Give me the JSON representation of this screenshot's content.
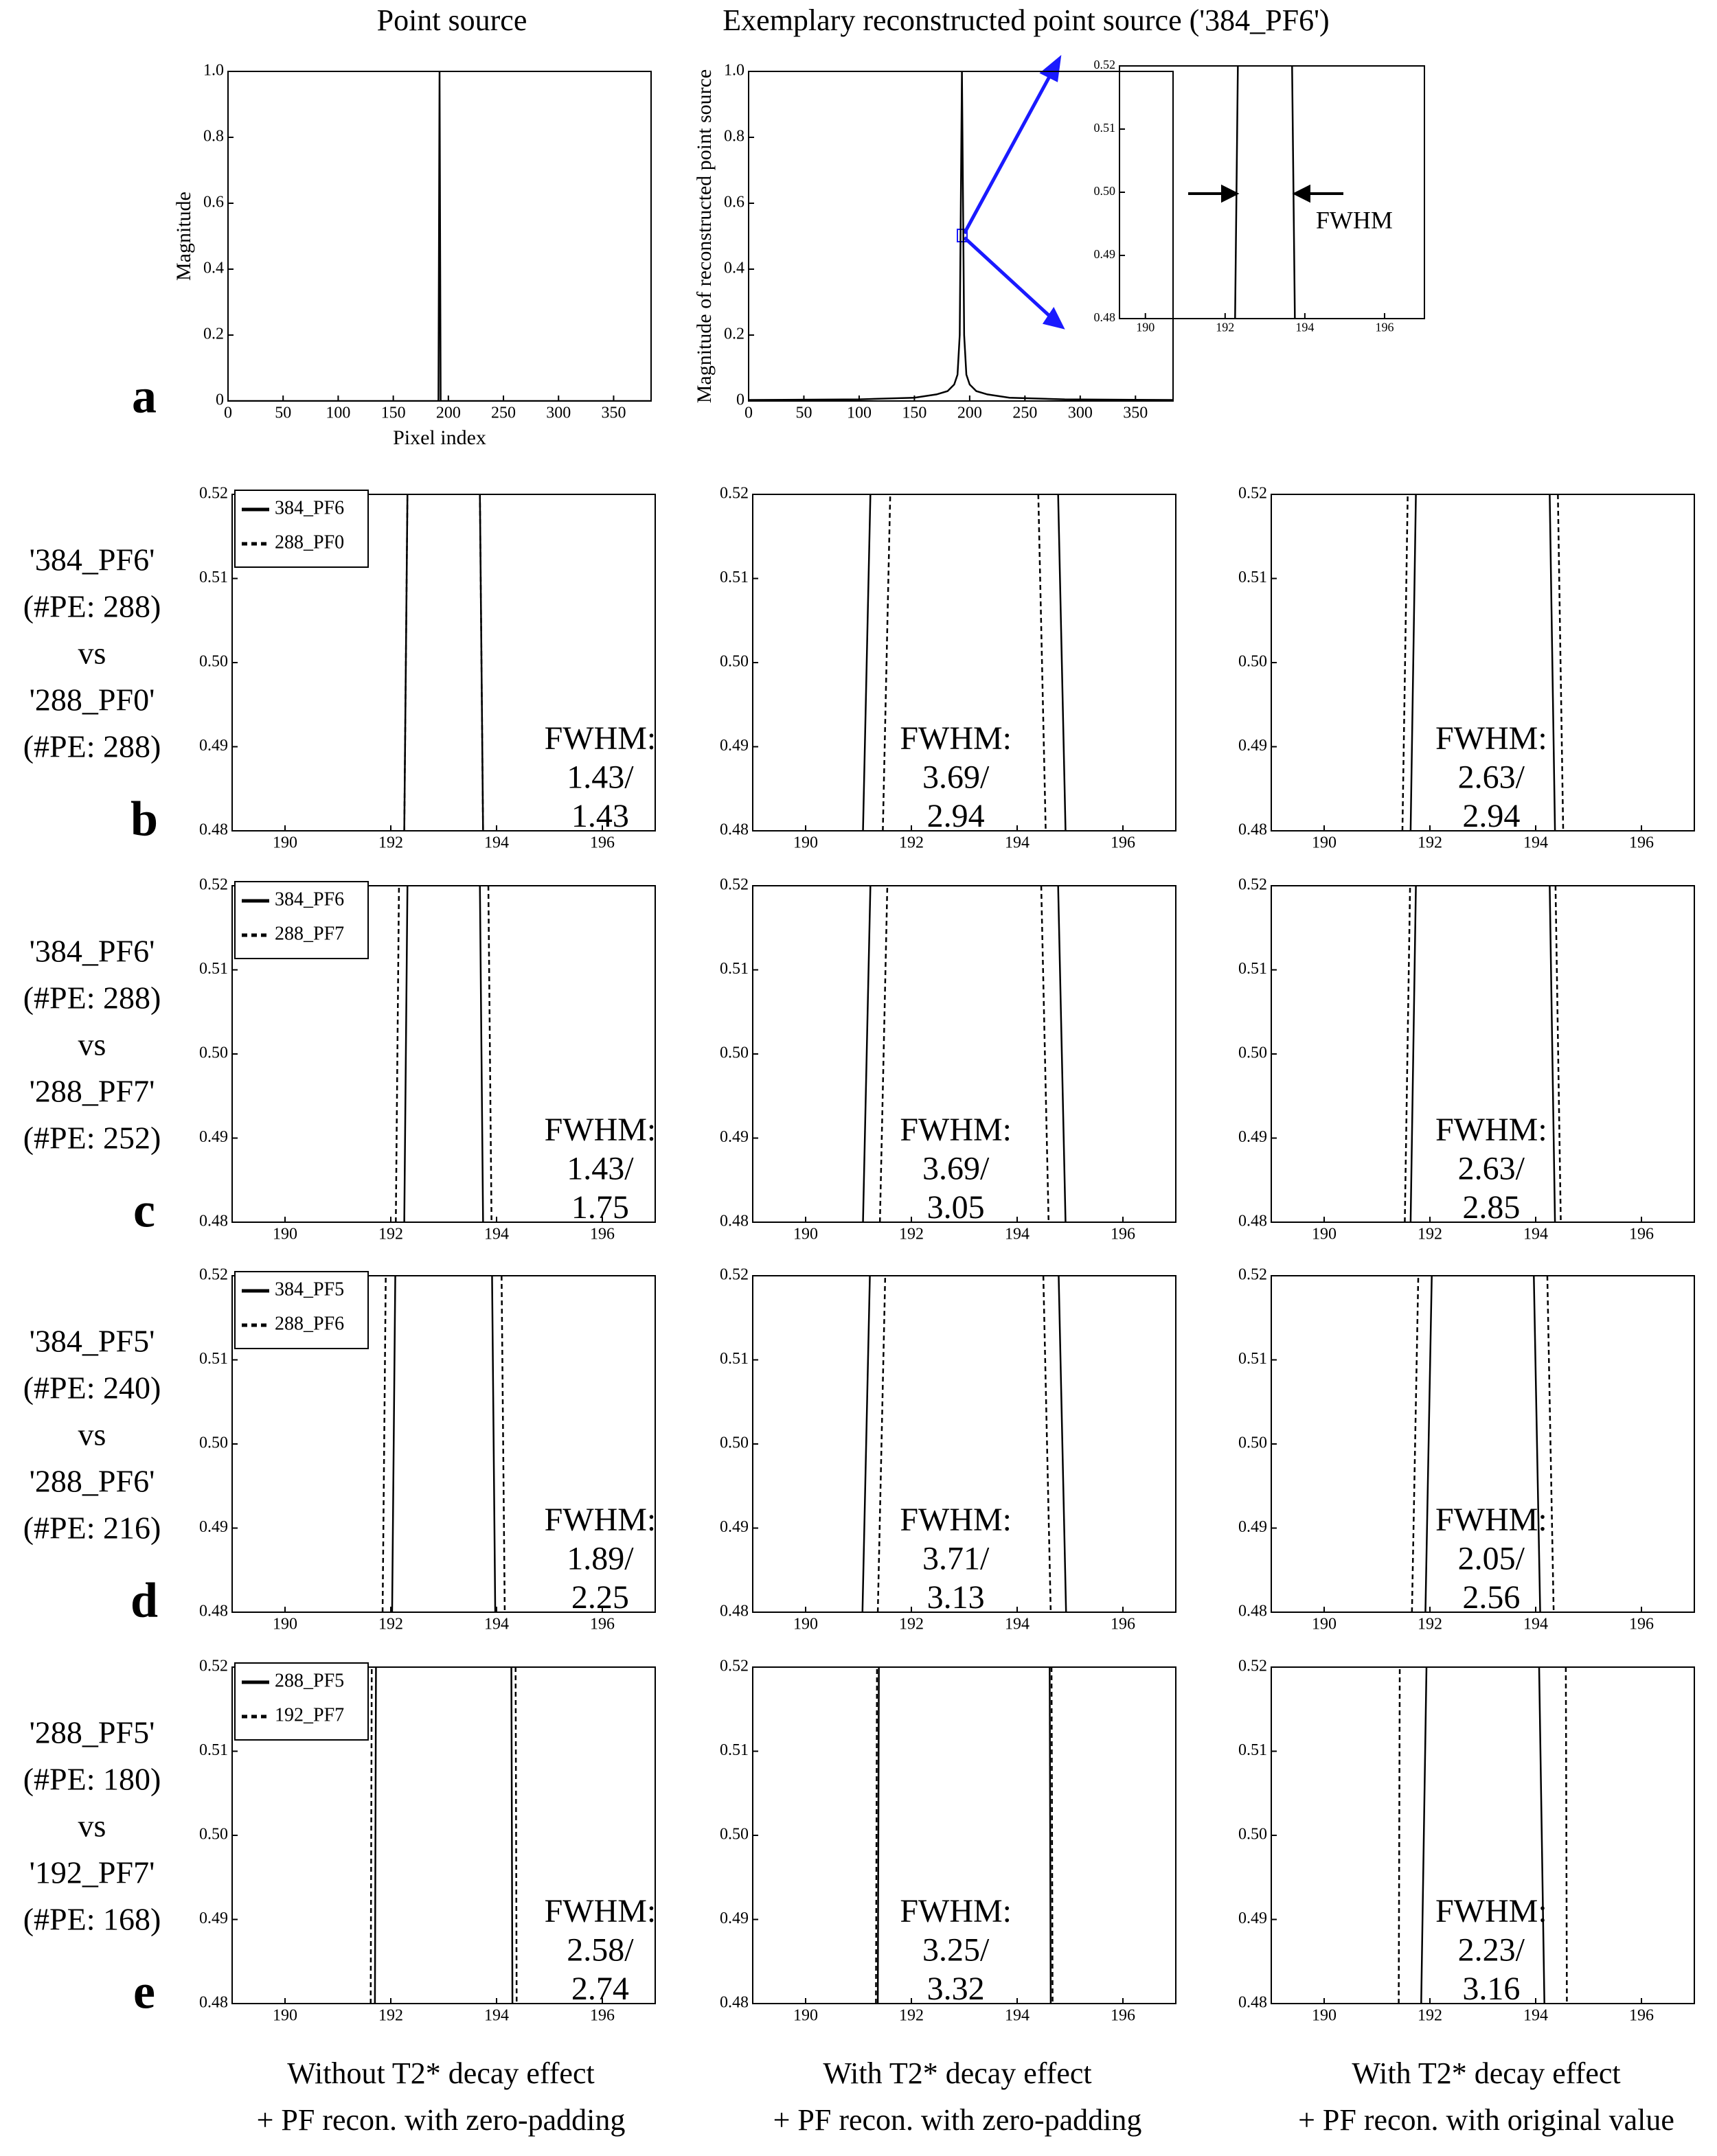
{
  "column_headers": [
    "Point source",
    "Exemplary reconstructed point source ('384_PF6')"
  ],
  "panel_a_letter": "a",
  "row_labels": [
    {
      "letter": "b",
      "lines": [
        "'384_PF6'",
        "(#PE: 288)",
        "vs",
        "'288_PF0'",
        "(#PE: 288)"
      ]
    },
    {
      "letter": "c",
      "lines": [
        "'384_PF6'",
        "(#PE: 288)",
        "vs",
        "'288_PF7'",
        "(#PE: 252)"
      ]
    },
    {
      "letter": "d",
      "lines": [
        "'384_PF5'",
        "(#PE: 240)",
        "vs",
        "'288_PF6'",
        "(#PE: 216)"
      ]
    },
    {
      "letter": "e",
      "lines": [
        "'288_PF5'",
        "(#PE: 180)",
        "vs",
        "'192_PF7'",
        "(#PE: 168)"
      ]
    }
  ],
  "column_footers": [
    [
      "Without T2* decay effect",
      "+ PF recon. with zero-padding"
    ],
    [
      "With T2* decay effect",
      "+ PF recon. with zero-padding"
    ],
    [
      "With T2* decay effect",
      "+ PF recon. with original value"
    ]
  ],
  "chart_data": [
    {
      "type": "line",
      "x_label": "Pixel index",
      "y_label": "Magnitude",
      "xlim": [
        0,
        384
      ],
      "ylim": [
        0,
        1
      ],
      "xticks": [
        0,
        50,
        100,
        150,
        200,
        250,
        300,
        350
      ],
      "yticks": [
        0,
        0.2,
        0.4,
        0.6,
        0.8,
        {
          "value": 1,
          "label": "1.0"
        }
      ],
      "x": [
        0,
        191,
        192,
        193,
        384
      ],
      "series": [
        {
          "color": "#000000",
          "dash": "solid",
          "values": [
            0,
            0,
            1,
            0,
            0
          ]
        }
      ]
    },
    {
      "type": "line",
      "y_label": "Magnitude of reconstructed point source",
      "xlim": [
        0,
        384
      ],
      "ylim": [
        0,
        1
      ],
      "xticks": [
        0,
        50,
        100,
        150,
        200,
        250,
        300,
        350
      ],
      "yticks": [
        0,
        0.2,
        0.4,
        0.6,
        0.8,
        {
          "value": 1,
          "label": "1.0"
        }
      ],
      "x": [
        0,
        100,
        150,
        170,
        180,
        186,
        189,
        191,
        192,
        193,
        194,
        195,
        197,
        200,
        206,
        216,
        236,
        286,
        384
      ],
      "series": [
        {
          "color": "#000000",
          "dash": "solid",
          "values": [
            0.003,
            0.005,
            0.01,
            0.02,
            0.03,
            0.05,
            0.08,
            0.2,
            0.6,
            1.0,
            0.6,
            0.2,
            0.08,
            0.05,
            0.03,
            0.02,
            0.01,
            0.005,
            0.003
          ]
        }
      ]
    },
    {
      "type": "line",
      "annotations": [
        "FWHM"
      ],
      "xlim": [
        189.35,
        197
      ],
      "ylim": [
        0.48,
        0.52
      ],
      "xticks": [
        190,
        192,
        194,
        196
      ],
      "yticks": [
        0.48,
        0.49,
        {
          "value": 0.5,
          "label": "0.50"
        },
        0.51,
        0.52
      ],
      "series": [
        {
          "color": "#000000",
          "dash": "solid",
          "x": [
            192.25,
            192.32,
            193,
            193.68,
            193.75
          ],
          "values": [
            0.48,
            0.52,
            null,
            0.52,
            0.48
          ]
        }
      ]
    },
    {
      "type": "line",
      "legend": "upper left",
      "annotations": [
        "FWHM:",
        "1.43/",
        "1.43"
      ],
      "xlim": [
        189,
        197
      ],
      "ylim": [
        0.48,
        0.52
      ],
      "xticks": [
        190,
        192,
        194,
        196
      ],
      "yticks": [
        0.48,
        0.49,
        {
          "value": 0.5,
          "label": "0.50"
        },
        0.51,
        0.52
      ],
      "series": [
        {
          "name": "384_PF6",
          "color": "#000000",
          "dash": "solid",
          "x": [
            192.255,
            192.315,
            193,
            193.685,
            193.745
          ],
          "values": [
            0.48,
            0.52,
            null,
            0.52,
            0.48
          ]
        },
        {
          "name": "288_PF0",
          "color": "#000000",
          "dash": "dashed",
          "x": [
            192.255,
            192.315,
            193,
            193.685,
            193.745
          ],
          "values": [
            0.48,
            0.52,
            null,
            0.52,
            0.48
          ]
        }
      ]
    },
    {
      "type": "line",
      "annotations": [
        "FWHM:",
        "3.69/",
        "2.94"
      ],
      "xlim": [
        189,
        197
      ],
      "ylim": [
        0.48,
        0.52
      ],
      "xticks": [
        190,
        192,
        194,
        196
      ],
      "yticks": [
        0.48,
        0.49,
        {
          "value": 0.5,
          "label": "0.50"
        },
        0.51,
        0.52
      ],
      "series": [
        {
          "color": "#000000",
          "dash": "solid",
          "x": [
            191.085,
            191.225,
            193,
            194.775,
            194.915
          ],
          "values": [
            0.48,
            0.52,
            null,
            0.52,
            0.48
          ]
        },
        {
          "color": "#000000",
          "dash": "dashed",
          "x": [
            191.46,
            191.6,
            193,
            194.4,
            194.54
          ],
          "values": [
            0.48,
            0.52,
            null,
            0.52,
            0.48
          ]
        }
      ]
    },
    {
      "type": "line",
      "annotations": [
        "FWHM:",
        "2.63/",
        "2.94"
      ],
      "xlim": [
        189,
        197
      ],
      "ylim": [
        0.48,
        0.52
      ],
      "xticks": [
        190,
        192,
        194,
        196
      ],
      "yticks": [
        0.48,
        0.49,
        {
          "value": 0.5,
          "label": "0.50"
        },
        0.51,
        0.52
      ],
      "series": [
        {
          "color": "#000000",
          "dash": "solid",
          "x": [
            191.635,
            191.735,
            193,
            194.265,
            194.365
          ],
          "values": [
            0.48,
            0.52,
            null,
            0.52,
            0.48
          ]
        },
        {
          "color": "#000000",
          "dash": "dashed",
          "x": [
            191.48,
            191.58,
            193,
            194.42,
            194.52
          ],
          "values": [
            0.48,
            0.52,
            null,
            0.52,
            0.48
          ]
        }
      ]
    },
    {
      "type": "line",
      "legend": "upper left",
      "annotations": [
        "FWHM:",
        "1.43/",
        "1.75"
      ],
      "xlim": [
        189,
        197
      ],
      "ylim": [
        0.48,
        0.52
      ],
      "xticks": [
        190,
        192,
        194,
        196
      ],
      "yticks": [
        0.48,
        0.49,
        {
          "value": 0.5,
          "label": "0.50"
        },
        0.51,
        0.52
      ],
      "series": [
        {
          "name": "384_PF6",
          "color": "#000000",
          "dash": "solid",
          "x": [
            192.255,
            192.315,
            193,
            193.685,
            193.745
          ],
          "values": [
            0.48,
            0.52,
            null,
            0.52,
            0.48
          ]
        },
        {
          "name": "288_PF7",
          "color": "#000000",
          "dash": "dashed",
          "x": [
            192.095,
            192.155,
            193,
            193.845,
            193.905
          ],
          "values": [
            0.48,
            0.52,
            null,
            0.52,
            0.48
          ]
        }
      ]
    },
    {
      "type": "line",
      "annotations": [
        "FWHM:",
        "3.69/",
        "3.05"
      ],
      "xlim": [
        189,
        197
      ],
      "ylim": [
        0.48,
        0.52
      ],
      "xticks": [
        190,
        192,
        194,
        196
      ],
      "yticks": [
        0.48,
        0.49,
        {
          "value": 0.5,
          "label": "0.50"
        },
        0.51,
        0.52
      ],
      "series": [
        {
          "color": "#000000",
          "dash": "solid",
          "x": [
            191.085,
            191.225,
            193,
            194.775,
            194.915
          ],
          "values": [
            0.48,
            0.52,
            null,
            0.52,
            0.48
          ]
        },
        {
          "color": "#000000",
          "dash": "dashed",
          "x": [
            191.405,
            191.545,
            193,
            194.455,
            194.595
          ],
          "values": [
            0.48,
            0.52,
            null,
            0.52,
            0.48
          ]
        }
      ]
    },
    {
      "type": "line",
      "annotations": [
        "FWHM:",
        "2.63/",
        "2.85"
      ],
      "xlim": [
        189,
        197
      ],
      "ylim": [
        0.48,
        0.52
      ],
      "xticks": [
        190,
        192,
        194,
        196
      ],
      "yticks": [
        0.48,
        0.49,
        {
          "value": 0.5,
          "label": "0.50"
        },
        0.51,
        0.52
      ],
      "series": [
        {
          "color": "#000000",
          "dash": "solid",
          "x": [
            191.635,
            191.735,
            193,
            194.265,
            194.365
          ],
          "values": [
            0.48,
            0.52,
            null,
            0.52,
            0.48
          ]
        },
        {
          "color": "#000000",
          "dash": "dashed",
          "x": [
            191.525,
            191.625,
            193,
            194.375,
            194.475
          ],
          "values": [
            0.48,
            0.52,
            null,
            0.52,
            0.48
          ]
        }
      ]
    },
    {
      "type": "line",
      "legend": "upper left",
      "annotations": [
        "FWHM:",
        "1.89/",
        "2.25"
      ],
      "xlim": [
        189,
        197
      ],
      "ylim": [
        0.48,
        0.52
      ],
      "xticks": [
        190,
        192,
        194,
        196
      ],
      "yticks": [
        0.48,
        0.49,
        {
          "value": 0.5,
          "label": "0.50"
        },
        0.51,
        0.52
      ],
      "series": [
        {
          "name": "384_PF5",
          "color": "#000000",
          "dash": "solid",
          "x": [
            192.025,
            192.085,
            193,
            193.915,
            193.975
          ],
          "values": [
            0.48,
            0.52,
            null,
            0.52,
            0.48
          ]
        },
        {
          "name": "288_PF6",
          "color": "#000000",
          "dash": "dashed",
          "x": [
            191.845,
            191.905,
            193,
            194.095,
            194.155
          ],
          "values": [
            0.48,
            0.52,
            null,
            0.52,
            0.48
          ]
        }
      ]
    },
    {
      "type": "line",
      "annotations": [
        "FWHM:",
        "3.71/",
        "3.13"
      ],
      "xlim": [
        189,
        197
      ],
      "ylim": [
        0.48,
        0.52
      ],
      "xticks": [
        190,
        192,
        194,
        196
      ],
      "yticks": [
        0.48,
        0.49,
        {
          "value": 0.5,
          "label": "0.50"
        },
        0.51,
        0.52
      ],
      "series": [
        {
          "color": "#000000",
          "dash": "solid",
          "x": [
            191.075,
            191.215,
            193,
            194.785,
            194.925
          ],
          "values": [
            0.48,
            0.52,
            null,
            0.52,
            0.48
          ]
        },
        {
          "color": "#000000",
          "dash": "dashed",
          "x": [
            191.365,
            191.505,
            193,
            194.495,
            194.635
          ],
          "values": [
            0.48,
            0.52,
            null,
            0.52,
            0.48
          ]
        }
      ]
    },
    {
      "type": "line",
      "annotations": [
        "FWHM:",
        "2.05/",
        "2.56"
      ],
      "xlim": [
        189,
        197
      ],
      "ylim": [
        0.48,
        0.52
      ],
      "xticks": [
        190,
        192,
        194,
        196
      ],
      "yticks": [
        0.48,
        0.49,
        {
          "value": 0.5,
          "label": "0.50"
        },
        0.51,
        0.52
      ],
      "series": [
        {
          "color": "#000000",
          "dash": "solid",
          "x": [
            191.915,
            192.035,
            193,
            193.965,
            194.085
          ],
          "values": [
            0.48,
            0.52,
            null,
            0.52,
            0.48
          ]
        },
        {
          "color": "#000000",
          "dash": "dashed",
          "x": [
            191.66,
            191.78,
            193,
            194.22,
            194.34
          ],
          "values": [
            0.48,
            0.52,
            null,
            0.52,
            0.48
          ]
        }
      ]
    },
    {
      "type": "line",
      "legend": "upper left",
      "annotations": [
        "FWHM:",
        "2.58/",
        "2.74"
      ],
      "xlim": [
        189,
        197
      ],
      "ylim": [
        0.48,
        0.52
      ],
      "xticks": [
        190,
        192,
        194,
        196
      ],
      "yticks": [
        0.48,
        0.49,
        {
          "value": 0.5,
          "label": "0.50"
        },
        0.51,
        0.52
      ],
      "series": [
        {
          "name": "288_PF5",
          "color": "#000000",
          "dash": "solid",
          "x": [
            191.7,
            191.72,
            193,
            194.28,
            194.3
          ],
          "values": [
            0.48,
            0.52,
            null,
            0.52,
            0.48
          ]
        },
        {
          "name": "192_PF7",
          "color": "#000000",
          "dash": "dashed",
          "x": [
            191.62,
            191.64,
            193,
            194.36,
            194.38
          ],
          "values": [
            0.48,
            0.52,
            null,
            0.52,
            0.48
          ]
        }
      ]
    },
    {
      "type": "line",
      "annotations": [
        "FWHM:",
        "3.25/",
        "3.32"
      ],
      "xlim": [
        189,
        197
      ],
      "ylim": [
        0.48,
        0.52
      ],
      "xticks": [
        190,
        192,
        194,
        196
      ],
      "yticks": [
        0.48,
        0.49,
        {
          "value": 0.5,
          "label": "0.50"
        },
        0.51,
        0.52
      ],
      "series": [
        {
          "color": "#000000",
          "dash": "solid",
          "x": [
            191.365,
            191.385,
            193,
            194.615,
            194.635
          ],
          "values": [
            0.48,
            0.52,
            null,
            0.52,
            0.48
          ]
        },
        {
          "color": "#000000",
          "dash": "dashed",
          "x": [
            191.33,
            191.35,
            193,
            194.65,
            194.67
          ],
          "values": [
            0.48,
            0.52,
            null,
            0.52,
            0.48
          ]
        }
      ]
    },
    {
      "type": "line",
      "annotations": [
        "FWHM:",
        "2.23/",
        "3.16"
      ],
      "xlim": [
        189,
        197
      ],
      "ylim": [
        0.48,
        0.52
      ],
      "xticks": [
        190,
        192,
        194,
        196
      ],
      "yticks": [
        0.48,
        0.49,
        {
          "value": 0.5,
          "label": "0.50"
        },
        0.51,
        0.52
      ],
      "series": [
        {
          "color": "#000000",
          "dash": "solid",
          "x": [
            191.835,
            191.935,
            193,
            194.065,
            194.165
          ],
          "values": [
            0.48,
            0.52,
            null,
            0.52,
            0.48
          ]
        },
        {
          "color": "#000000",
          "dash": "dashed",
          "x": [
            191.41,
            191.43,
            193,
            194.57,
            194.59
          ],
          "values": [
            0.48,
            0.52,
            null,
            0.52,
            0.48
          ]
        }
      ]
    }
  ]
}
